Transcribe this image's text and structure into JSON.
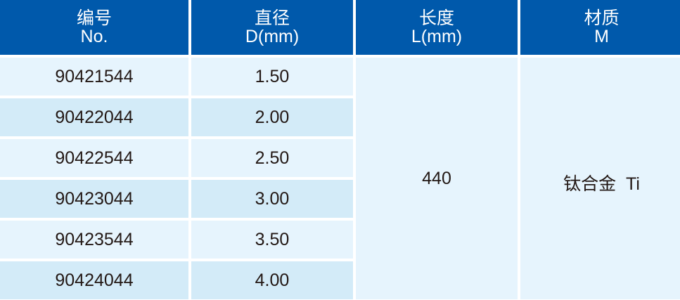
{
  "colors": {
    "header_bg": "#0059ab",
    "row_light": "#e6f4fd",
    "row_alt": "#d3ebf8"
  },
  "headers": [
    {
      "cn": "编号",
      "en": "No."
    },
    {
      "cn": "直径",
      "en": "D(mm)"
    },
    {
      "cn": "长度",
      "en": "L(mm)"
    },
    {
      "cn": "材质",
      "en": "M"
    }
  ],
  "rows": [
    {
      "no": "90421544",
      "d": "1.50"
    },
    {
      "no": "90422044",
      "d": "2.00"
    },
    {
      "no": "90422544",
      "d": "2.50"
    },
    {
      "no": "90423044",
      "d": "3.00"
    },
    {
      "no": "90423544",
      "d": "3.50"
    },
    {
      "no": "90424044",
      "d": "4.00"
    }
  ],
  "length": "440",
  "material": "钛合金  Ti"
}
